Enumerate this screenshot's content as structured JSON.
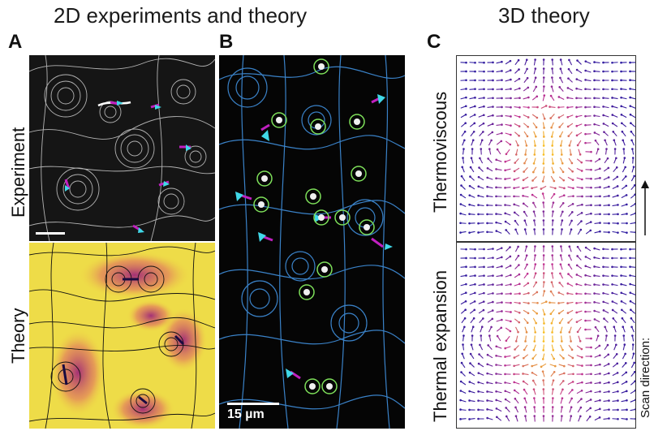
{
  "headers": {
    "left": "2D experiments and theory",
    "right": "3D theory"
  },
  "panels": {
    "a": {
      "letter": "A",
      "top_label": "Experiment",
      "bottom_label": "Theory"
    },
    "b": {
      "letter": "B",
      "scale_bar": "15 µm"
    },
    "c": {
      "letter": "C",
      "top_label": "Thermoviscous",
      "bottom_label": "Thermal expansion",
      "scan_label": "Scan direction:"
    }
  },
  "colors": {
    "experiment_bg": "#151515",
    "experiment_lines": "#d8d8d8",
    "theory_bg_low": "#f0e040",
    "theory_bg_high": "#d04080",
    "panel_b_bg": "#050505",
    "panel_b_lines": "#3a82c8",
    "particle_ring": "#7ee05a",
    "magenta_marker": "#c020c0",
    "cyan_arrow": "#40d8e8",
    "vec_low": "#2a1aa0",
    "vec_mid": "#c03090",
    "vec_high": "#f8c020"
  }
}
